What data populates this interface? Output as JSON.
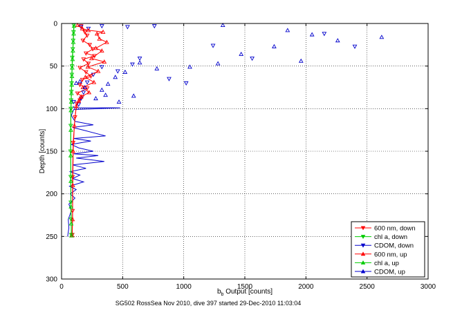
{
  "chart_data": {
    "type": "scatter",
    "xlabel_main": "b",
    "xlabel_sub": "b",
    "xlabel_rest": " Output [counts]",
    "ylabel": "Depth [counts]",
    "caption": "SG502 RossSea Nov 2010, dive 397 started 29-Dec-2010 11:03:04",
    "xlim": [
      0,
      3000
    ],
    "ylim": [
      0,
      300
    ],
    "y_reversed": true,
    "grid": true,
    "grid_style": "dotted",
    "legend_position": "bottom-right",
    "xticks": [
      0,
      500,
      1000,
      1500,
      2000,
      2500,
      3000
    ],
    "yticks": [
      0,
      50,
      100,
      150,
      200,
      250,
      300
    ],
    "series": [
      {
        "name": "600 nm, down",
        "color": "#ff0000",
        "marker": "triangle-down",
        "points": [
          [
            160,
            3
          ],
          [
            190,
            10
          ],
          [
            210,
            14
          ],
          [
            175,
            20
          ],
          [
            230,
            25
          ],
          [
            255,
            30
          ],
          [
            200,
            35
          ],
          [
            270,
            38
          ],
          [
            180,
            42
          ],
          [
            220,
            47
          ],
          [
            150,
            52
          ],
          [
            200,
            57
          ],
          [
            240,
            62
          ],
          [
            170,
            66
          ],
          [
            150,
            72
          ],
          [
            210,
            76
          ],
          [
            130,
            82
          ],
          [
            170,
            86
          ],
          [
            150,
            90
          ],
          [
            125,
            94
          ],
          [
            110,
            110
          ],
          [
            95,
            140
          ],
          [
            90,
            180
          ],
          [
            90,
            220
          ],
          [
            88,
            248
          ]
        ]
      },
      {
        "name": "chl a, down",
        "color": "#00cc00",
        "marker": "triangle-down",
        "points": [
          [
            100,
            2
          ],
          [
            98,
            10
          ],
          [
            95,
            20
          ],
          [
            92,
            30
          ],
          [
            88,
            40
          ],
          [
            86,
            50
          ],
          [
            84,
            60
          ],
          [
            82,
            70
          ],
          [
            80,
            80
          ],
          [
            78,
            90
          ],
          [
            76,
            100
          ],
          [
            75,
            120
          ],
          [
            74,
            150
          ],
          [
            75,
            180
          ],
          [
            76,
            210
          ],
          [
            78,
            230
          ],
          [
            80,
            248
          ]
        ]
      },
      {
        "name": "CDOM, down",
        "color": "#0000cc",
        "marker": "triangle-down",
        "points": [
          [
            160,
            4
          ],
          [
            220,
            6
          ],
          [
            330,
            3
          ],
          [
            540,
            4
          ],
          [
            760,
            3
          ],
          [
            1240,
            26
          ],
          [
            1560,
            41
          ],
          [
            2400,
            27
          ],
          [
            2150,
            12
          ],
          [
            1020,
            70
          ],
          [
            880,
            65
          ],
          [
            640,
            41
          ],
          [
            580,
            48
          ],
          [
            460,
            56
          ],
          [
            330,
            51
          ],
          [
            260,
            60
          ],
          [
            210,
            69
          ],
          [
            180,
            81
          ],
          [
            160,
            88
          ],
          [
            140,
            95
          ],
          [
            100,
            92
          ]
        ]
      },
      {
        "name": "600 nm, up",
        "color": "#ff0000",
        "marker": "triangle-up",
        "points": [
          [
            130,
            2
          ],
          [
            170,
            6
          ],
          [
            220,
            8
          ],
          [
            290,
            12
          ],
          [
            340,
            10
          ],
          [
            310,
            18
          ],
          [
            370,
            22
          ],
          [
            280,
            29
          ],
          [
            330,
            32
          ],
          [
            245,
            41
          ],
          [
            350,
            45
          ],
          [
            215,
            51
          ],
          [
            300,
            56
          ],
          [
            195,
            63
          ],
          [
            265,
            69
          ],
          [
            175,
            75
          ],
          [
            225,
            81
          ],
          [
            160,
            86
          ],
          [
            140,
            91
          ],
          [
            120,
            97
          ],
          [
            105,
            120
          ],
          [
            95,
            150
          ],
          [
            92,
            190
          ],
          [
            90,
            230
          ],
          [
            86,
            249
          ]
        ]
      },
      {
        "name": "chl a, up",
        "color": "#00cc00",
        "marker": "triangle-up",
        "points": [
          [
            102,
            3
          ],
          [
            99,
            12
          ],
          [
            96,
            22
          ],
          [
            93,
            32
          ],
          [
            90,
            42
          ],
          [
            87,
            52
          ],
          [
            85,
            62
          ],
          [
            83,
            72
          ],
          [
            81,
            82
          ],
          [
            79,
            92
          ],
          [
            77,
            102
          ],
          [
            76,
            125
          ],
          [
            75,
            155
          ],
          [
            76,
            185
          ],
          [
            77,
            215
          ],
          [
            79,
            235
          ],
          [
            81,
            249
          ]
        ]
      },
      {
        "name": "CDOM, up",
        "color": "#0000cc",
        "marker": "triangle-up",
        "points": [
          [
            1320,
            2
          ],
          [
            1850,
            8
          ],
          [
            2050,
            13
          ],
          [
            2260,
            20
          ],
          [
            2620,
            16
          ],
          [
            1740,
            27
          ],
          [
            1470,
            36
          ],
          [
            1960,
            44
          ],
          [
            1280,
            47
          ],
          [
            1050,
            51
          ],
          [
            780,
            53
          ],
          [
            640,
            46
          ],
          [
            520,
            57
          ],
          [
            440,
            63
          ],
          [
            380,
            71
          ],
          [
            330,
            78
          ],
          [
            590,
            85
          ],
          [
            470,
            92
          ],
          [
            360,
            84
          ],
          [
            280,
            88
          ],
          [
            190,
            75
          ],
          [
            150,
            68
          ],
          [
            120,
            70
          ]
        ]
      }
    ],
    "cdom_profile": [
      [
        95,
        97
      ],
      [
        100,
        99
      ],
      [
        480,
        99
      ],
      [
        100,
        101
      ],
      [
        80,
        108
      ],
      [
        110,
        115
      ],
      [
        260,
        119
      ],
      [
        90,
        122
      ],
      [
        200,
        126
      ],
      [
        360,
        132
      ],
      [
        100,
        135
      ],
      [
        240,
        138
      ],
      [
        80,
        142
      ],
      [
        140,
        146
      ],
      [
        260,
        150
      ],
      [
        100,
        153
      ],
      [
        300,
        155
      ],
      [
        120,
        158
      ],
      [
        350,
        162
      ],
      [
        90,
        166
      ],
      [
        200,
        170
      ],
      [
        70,
        174
      ],
      [
        150,
        178
      ],
      [
        90,
        182
      ],
      [
        180,
        186
      ],
      [
        65,
        191
      ],
      [
        120,
        195
      ],
      [
        70,
        200
      ],
      [
        110,
        205
      ],
      [
        60,
        212
      ],
      [
        80,
        220
      ],
      [
        55,
        230
      ],
      [
        60,
        240
      ],
      [
        50,
        250
      ]
    ]
  }
}
